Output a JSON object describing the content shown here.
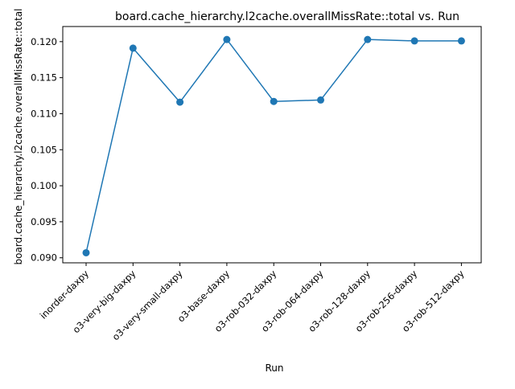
{
  "chart_data": {
    "type": "line",
    "title": "board.cache_hierarchy.l2cache.overallMissRate::total vs. Run",
    "xlabel": "Run",
    "ylabel": "board.cache_hierarchy.l2cache.overallMissRate::total",
    "categories": [
      "inorder-daxpy",
      "o3-very-big-daxpy",
      "o3-very-small-daxpy",
      "o3-base-daxpy",
      "o3-rob-032-daxpy",
      "o3-rob-064-daxpy",
      "o3-rob-128-daxpy",
      "o3-rob-256-daxpy",
      "o3-rob-512-daxpy"
    ],
    "values": [
      0.0907,
      0.1191,
      0.1116,
      0.1203,
      0.1117,
      0.1119,
      0.1203,
      0.1201,
      0.1201
    ],
    "ylim": [
      0.0893,
      0.1221
    ],
    "yticks": [
      "0.090",
      "0.095",
      "0.100",
      "0.105",
      "0.110",
      "0.115",
      "0.120"
    ],
    "ytick_values": [
      0.09,
      0.095,
      0.1,
      0.105,
      0.11,
      0.115,
      0.12
    ],
    "grid": false,
    "legend": "none",
    "colors": {
      "line": "#1f77b4",
      "marker": "#1f77b4",
      "axes": "#000000"
    }
  }
}
